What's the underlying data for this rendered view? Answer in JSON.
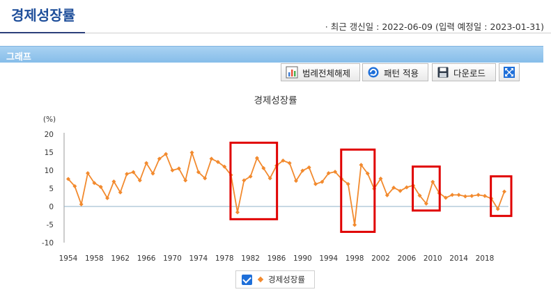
{
  "header": {
    "title": "경제성장률",
    "update_info": "· 최근 갱신일 : 2022-06-09 (입력 예정일 : 2023-01-31)"
  },
  "section": {
    "label": "그래프"
  },
  "toolbar": {
    "legend_toggle_label": "범례전체해제",
    "pattern_apply_label": "패턴 적용",
    "download_label": "다운로드"
  },
  "icons": {
    "legend_toggle": "bar-chart-icon",
    "pattern_apply": "refresh-icon",
    "download": "floppy-disk-icon",
    "fullscreen": "expand-arrows-icon"
  },
  "colors": {
    "series": "#f28a2e",
    "highlight": "#e00000",
    "zero_line": "#8fb2c9",
    "accent": "#1e4e9a"
  },
  "chart_data": {
    "type": "line",
    "title": "경제성장률",
    "ylabel": "(%)",
    "ylim": [
      -10,
      20
    ],
    "yticks": [
      -10,
      -5,
      0,
      5,
      10,
      15,
      20
    ],
    "xticks": [
      1954,
      1958,
      1962,
      1966,
      1970,
      1974,
      1978,
      1982,
      1986,
      1990,
      1994,
      1998,
      2002,
      2006,
      2010,
      2014,
      2018
    ],
    "grid": false,
    "legend": "bottom",
    "series": [
      {
        "name": "경제성장률",
        "x": [
          1954,
          1955,
          1956,
          1957,
          1958,
          1959,
          1960,
          1961,
          1962,
          1963,
          1964,
          1965,
          1966,
          1967,
          1968,
          1969,
          1970,
          1971,
          1972,
          1973,
          1974,
          1975,
          1976,
          1977,
          1978,
          1979,
          1980,
          1981,
          1982,
          1983,
          1984,
          1985,
          1986,
          1987,
          1988,
          1989,
          1990,
          1991,
          1992,
          1993,
          1994,
          1995,
          1996,
          1997,
          1998,
          1999,
          2000,
          2001,
          2002,
          2003,
          2004,
          2005,
          2006,
          2007,
          2008,
          2009,
          2010,
          2011,
          2012,
          2013,
          2014,
          2015,
          2016,
          2017,
          2018,
          2019,
          2020,
          2021
        ],
        "values": [
          7.6,
          5.6,
          0.6,
          9.2,
          6.5,
          5.4,
          2.3,
          6.9,
          3.9,
          9.0,
          9.5,
          7.2,
          12.0,
          9.1,
          13.2,
          14.5,
          10.0,
          10.5,
          7.2,
          14.9,
          9.5,
          7.8,
          13.2,
          12.3,
          11.0,
          8.7,
          -1.6,
          7.2,
          8.3,
          13.4,
          10.6,
          7.8,
          11.3,
          12.7,
          12.0,
          7.1,
          9.9,
          10.8,
          6.2,
          6.8,
          9.2,
          9.6,
          7.6,
          6.2,
          -5.1,
          11.5,
          9.1,
          4.9,
          7.7,
          3.1,
          5.2,
          4.3,
          5.3,
          5.8,
          3.0,
          0.8,
          6.8,
          3.7,
          2.4,
          3.2,
          3.2,
          2.8,
          2.9,
          3.2,
          2.9,
          2.2,
          -0.7,
          4.1
        ]
      }
    ],
    "highlight_ranges": [
      [
        1980,
        1985
      ],
      [
        1997,
        2000
      ],
      [
        2008,
        2010
      ],
      [
        2020,
        2021
      ]
    ]
  }
}
